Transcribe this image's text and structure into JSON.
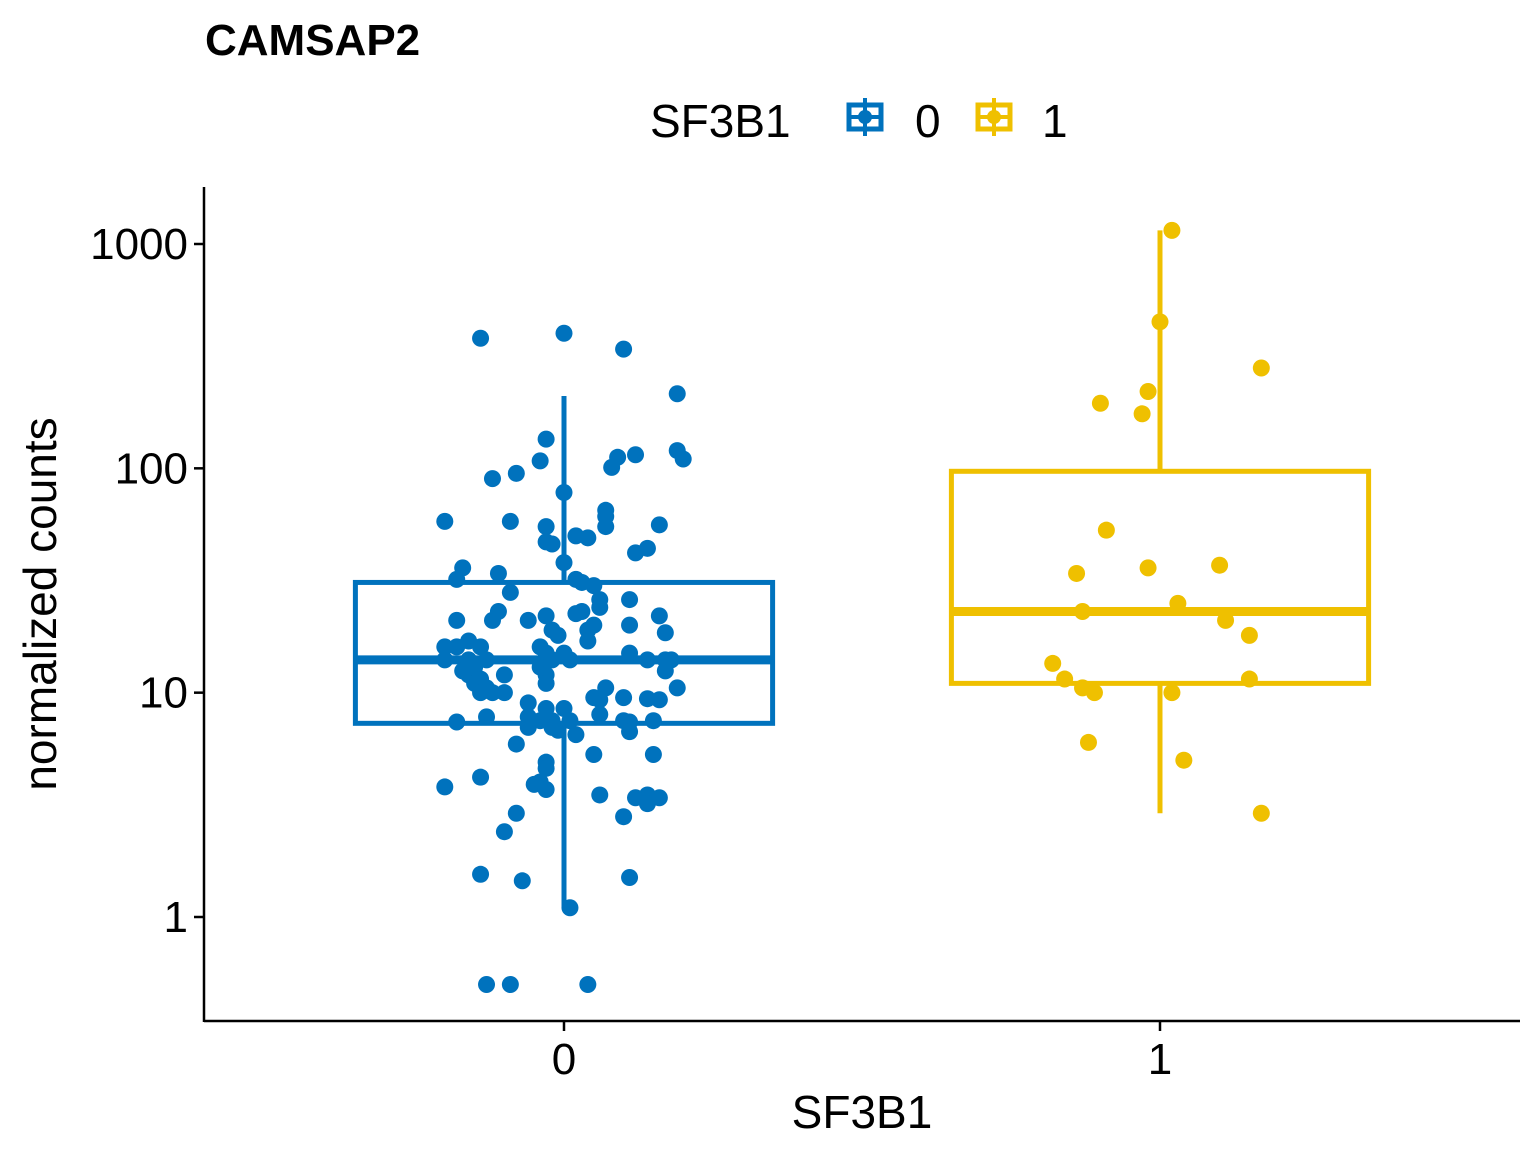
{
  "chart_data": {
    "type": "box",
    "title": "CAMSAP2",
    "xlabel": "SF3B1",
    "ylabel": "normalized counts",
    "y_scale": "log10",
    "ylim": [
      0.4,
      1700
    ],
    "y_ticks": [
      "1",
      "10",
      "100",
      "1000"
    ],
    "y_tick_values": [
      1,
      10,
      100,
      1000
    ],
    "categories": [
      "0",
      "1"
    ],
    "legend": {
      "title": "SF3B1",
      "position": "top",
      "entries": [
        "0",
        "1"
      ]
    },
    "colors": {
      "0": "#0072BD",
      "1": "#EFC000"
    },
    "grid": false,
    "boxes": [
      {
        "group": "0",
        "whisker_low": 1.1,
        "q1": 7.3,
        "median": 14,
        "q3": 31,
        "whisker_high": 210
      },
      {
        "group": "1",
        "whisker_low": 2.9,
        "q1": 11,
        "median": 23,
        "q3": 97,
        "whisker_high": 1150
      }
    ],
    "series": [
      {
        "name": "0",
        "points": [
          [
            -0.14,
            380
          ],
          [
            0.0,
            400
          ],
          [
            0.1,
            340
          ],
          [
            0.19,
            215
          ],
          [
            -0.03,
            135
          ],
          [
            0.19,
            120
          ],
          [
            0.2,
            110
          ],
          [
            -0.04,
            108
          ],
          [
            0.12,
            115
          ],
          [
            0.09,
            112
          ],
          [
            0.08,
            101
          ],
          [
            -0.12,
            90
          ],
          [
            -0.08,
            95
          ],
          [
            0.0,
            78
          ],
          [
            0.07,
            65
          ],
          [
            0.07,
            61
          ],
          [
            0.16,
            56
          ],
          [
            0.07,
            55
          ],
          [
            -0.2,
            58
          ],
          [
            -0.09,
            58
          ],
          [
            -0.03,
            55
          ],
          [
            0.02,
            50
          ],
          [
            0.04,
            49
          ],
          [
            -0.03,
            47
          ],
          [
            -0.02,
            46
          ],
          [
            0.14,
            44
          ],
          [
            0.12,
            42
          ],
          [
            0.0,
            38
          ],
          [
            -0.17,
            36
          ],
          [
            -0.11,
            34
          ],
          [
            -0.18,
            32
          ],
          [
            0.02,
            32
          ],
          [
            0.03,
            31
          ],
          [
            0.05,
            30
          ],
          [
            -0.09,
            28
          ],
          [
            0.06,
            26
          ],
          [
            0.11,
            26
          ],
          [
            0.06,
            24
          ],
          [
            -0.11,
            23
          ],
          [
            0.03,
            23
          ],
          [
            0.02,
            22.5
          ],
          [
            -0.03,
            22
          ],
          [
            -0.06,
            21
          ],
          [
            0.16,
            22
          ],
          [
            -0.12,
            21
          ],
          [
            -0.18,
            21
          ],
          [
            0.05,
            20
          ],
          [
            0.11,
            20
          ],
          [
            -0.02,
            19
          ],
          [
            0.04,
            19
          ],
          [
            0.17,
            18.5
          ],
          [
            -0.01,
            18
          ],
          [
            0.04,
            17
          ],
          [
            -0.16,
            17
          ],
          [
            -0.18,
            16
          ],
          [
            -0.2,
            16
          ],
          [
            -0.14,
            16
          ],
          [
            -0.04,
            16
          ],
          [
            -0.03,
            15
          ],
          [
            0.0,
            15
          ],
          [
            0.11,
            15
          ],
          [
            -0.16,
            14
          ],
          [
            -0.13,
            14
          ],
          [
            -0.2,
            14
          ],
          [
            -0.02,
            14
          ],
          [
            0.01,
            14
          ],
          [
            0.14,
            14
          ],
          [
            0.18,
            14
          ],
          [
            0.17,
            14
          ],
          [
            -0.15,
            13
          ],
          [
            -0.17,
            12.5
          ],
          [
            -0.04,
            13
          ],
          [
            0.17,
            12.5
          ],
          [
            -0.1,
            12
          ],
          [
            -0.03,
            12
          ],
          [
            -0.16,
            12
          ],
          [
            -0.14,
            11.5
          ],
          [
            -0.03,
            11
          ],
          [
            -0.15,
            11
          ],
          [
            -0.13,
            10.5
          ],
          [
            -0.12,
            10
          ],
          [
            -0.1,
            10
          ],
          [
            0.07,
            10.5
          ],
          [
            0.19,
            10.5
          ],
          [
            -0.14,
            10
          ],
          [
            0.05,
            9.5
          ],
          [
            0.1,
            9.5
          ],
          [
            0.06,
            9.3
          ],
          [
            0.14,
            9.4
          ],
          [
            0.16,
            9.3
          ],
          [
            -0.06,
            9
          ],
          [
            -0.03,
            8.5
          ],
          [
            0.0,
            8.5
          ],
          [
            0.06,
            8
          ],
          [
            -0.13,
            7.8
          ],
          [
            -0.06,
            7.8
          ],
          [
            -0.04,
            7.5
          ],
          [
            -0.02,
            7.5
          ],
          [
            0.01,
            7.5
          ],
          [
            0.1,
            7.5
          ],
          [
            0.11,
            7.4
          ],
          [
            0.15,
            7.5
          ],
          [
            -0.18,
            7.4
          ],
          [
            -0.06,
            7
          ],
          [
            -0.02,
            7
          ],
          [
            -0.01,
            6.8
          ],
          [
            0.02,
            6.5
          ],
          [
            0.11,
            6.7
          ],
          [
            -0.08,
            5.9
          ],
          [
            0.05,
            5.3
          ],
          [
            0.15,
            5.3
          ],
          [
            -0.03,
            4.9
          ],
          [
            -0.03,
            4.6
          ],
          [
            -0.14,
            4.2
          ],
          [
            -0.04,
            4.0
          ],
          [
            -0.05,
            3.9
          ],
          [
            -0.2,
            3.8
          ],
          [
            -0.03,
            3.7
          ],
          [
            0.06,
            3.5
          ],
          [
            0.12,
            3.4
          ],
          [
            0.14,
            3.5
          ],
          [
            0.16,
            3.4
          ],
          [
            0.14,
            3.2
          ],
          [
            -0.08,
            2.9
          ],
          [
            0.1,
            2.8
          ],
          [
            -0.1,
            2.4
          ],
          [
            -0.14,
            1.55
          ],
          [
            -0.07,
            1.45
          ],
          [
            0.11,
            1.5
          ],
          [
            0.01,
            1.1
          ],
          [
            -0.13,
            0.5
          ],
          [
            -0.09,
            0.5
          ],
          [
            0.04,
            0.5
          ]
        ]
      },
      {
        "name": "1",
        "points": [
          [
            0.02,
            1150
          ],
          [
            0.0,
            450
          ],
          [
            0.17,
            280
          ],
          [
            -0.02,
            220
          ],
          [
            -0.1,
            195
          ],
          [
            -0.03,
            175
          ],
          [
            -0.09,
            53
          ],
          [
            -0.02,
            36
          ],
          [
            0.1,
            37
          ],
          [
            -0.14,
            34
          ],
          [
            0.03,
            25
          ],
          [
            -0.13,
            23
          ],
          [
            0.11,
            21
          ],
          [
            0.15,
            18
          ],
          [
            -0.18,
            13.5
          ],
          [
            -0.16,
            11.5
          ],
          [
            -0.13,
            10.5
          ],
          [
            0.15,
            11.5
          ],
          [
            -0.11,
            10
          ],
          [
            0.02,
            10
          ],
          [
            -0.12,
            6
          ],
          [
            0.04,
            5
          ],
          [
            0.17,
            2.9
          ]
        ]
      }
    ]
  }
}
